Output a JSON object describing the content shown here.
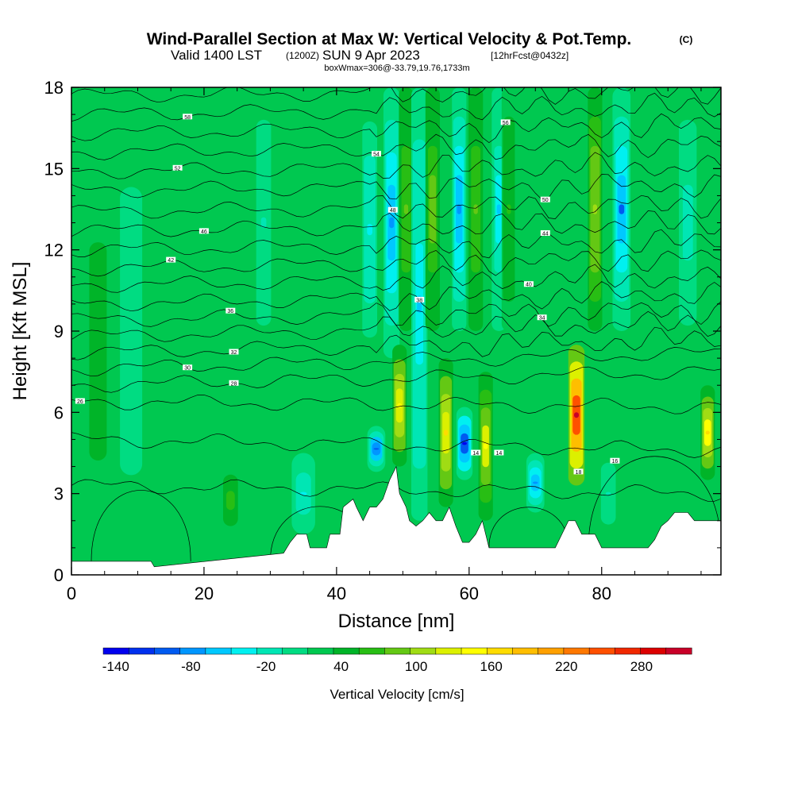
{
  "chart_data": {
    "type": "heatmap",
    "title": "Wind-Parallel Section at Max W: Vertical Velocity & Pot.Temp.",
    "copyright": "(C)",
    "subtitle_prefix": "Valid 1400 LST",
    "subtitle_zulu": "(1200Z)",
    "subtitle_date": "SUN 9 Apr 2023",
    "subtitle_fcst": "[12hrFcst@0432z]",
    "info_line": "boxWmax=306@-33.79,19.76,1733m",
    "xlabel": "Distance [nm]",
    "ylabel": "Height [Kft MSL]",
    "xlim": [
      0,
      98
    ],
    "ylim": [
      0,
      18
    ],
    "xticks": [
      0,
      20,
      40,
      60,
      80
    ],
    "yticks": [
      0,
      3,
      6,
      9,
      12,
      15,
      18
    ],
    "colorbar_label": "Vertical Velocity [cm/s]",
    "colorbar_range": [
      -150,
      320
    ],
    "colorbar_ticks": [
      "-140",
      "-80",
      "-20",
      "40",
      "100",
      "160",
      "220",
      "280"
    ],
    "colorbar_tick_values": [
      -140,
      -80,
      -20,
      40,
      100,
      160,
      220,
      280
    ],
    "colors": [
      "#0000ee",
      "#0030ee",
      "#005af0",
      "#0096ff",
      "#00c8ff",
      "#00f0f0",
      "#00e6b4",
      "#00dc82",
      "#00c850",
      "#00b428",
      "#28be14",
      "#64c814",
      "#a0dc14",
      "#dcf000",
      "#ffff00",
      "#ffdc00",
      "#ffbe00",
      "#ffa000",
      "#ff7800",
      "#ff5000",
      "#f02800",
      "#dc0000",
      "#c80028"
    ],
    "background_w": 25,
    "columns": [
      {
        "x": 4,
        "halfwidth": 1.5,
        "w": 40,
        "ybot": 0.5,
        "ytop": 16
      },
      {
        "x": 9,
        "halfwidth": 1.5,
        "w": -5,
        "ybot": 2,
        "ytop": 16
      },
      {
        "x": 24,
        "halfwidth": 1.0,
        "w": 65,
        "ybot": 1.5,
        "ytop": 4
      },
      {
        "x": 35,
        "halfwidth": 1.3,
        "w": -35,
        "ybot": 1.5,
        "ytop": 4.5
      },
      {
        "x": 29,
        "halfwidth": 1.0,
        "w": -10,
        "ybot": 8,
        "ytop": 18
      },
      {
        "x": 45,
        "halfwidth": 1.0,
        "w": -30,
        "ybot": 7.5,
        "ytop": 18
      },
      {
        "x": 46,
        "halfwidth": 1.0,
        "w": -100,
        "ybot": 3.8,
        "ytop": 5.5
      },
      {
        "x": 48.3,
        "halfwidth": 0.9,
        "w": -70,
        "ybot": 8,
        "ytop": 18
      },
      {
        "x": 49.5,
        "halfwidth": 0.8,
        "w": 150,
        "ybot": 4,
        "ytop": 8.5
      },
      {
        "x": 50.5,
        "halfwidth": 0.8,
        "w": 80,
        "ybot": 9,
        "ytop": 18
      },
      {
        "x": 52.5,
        "halfwidth": 0.9,
        "w": -60,
        "ybot": 2,
        "ytop": 18
      },
      {
        "x": 54.5,
        "halfwidth": 0.8,
        "w": 90,
        "ybot": 9,
        "ytop": 18
      },
      {
        "x": 56.5,
        "halfwidth": 0.8,
        "w": 160,
        "ybot": 2.5,
        "ytop": 8
      },
      {
        "x": 58.5,
        "halfwidth": 0.8,
        "w": -70,
        "ybot": 9,
        "ytop": 18
      },
      {
        "x": 59.3,
        "halfwidth": 0.9,
        "w": -130,
        "ybot": 3.5,
        "ytop": 6.2
      },
      {
        "x": 61,
        "halfwidth": 0.8,
        "w": 80,
        "ybot": 9,
        "ytop": 18
      },
      {
        "x": 62.5,
        "halfwidth": 0.8,
        "w": 140,
        "ybot": 2,
        "ytop": 7.5
      },
      {
        "x": 64.5,
        "halfwidth": 0.8,
        "w": -50,
        "ybot": 9,
        "ytop": 18
      },
      {
        "x": 66,
        "halfwidth": 0.8,
        "w": 60,
        "ybot": 9,
        "ytop": 18
      },
      {
        "x": 70,
        "halfwidth": 1.0,
        "w": -80,
        "ybot": 2.3,
        "ytop": 4.5
      },
      {
        "x": 76.2,
        "halfwidth": 0.9,
        "w": 300,
        "ybot": 3.3,
        "ytop": 8.5
      },
      {
        "x": 79,
        "halfwidth": 0.8,
        "w": 110,
        "ybot": 9,
        "ytop": 18
      },
      {
        "x": 83,
        "halfwidth": 1.0,
        "w": -90,
        "ybot": 9,
        "ytop": 18
      },
      {
        "x": 81,
        "halfwidth": 1.0,
        "w": -10,
        "ybot": 1.5,
        "ytop": 4.5
      },
      {
        "x": 96,
        "halfwidth": 0.8,
        "w": 170,
        "ybot": 3.5,
        "ytop": 7
      },
      {
        "x": 93,
        "halfwidth": 1.2,
        "w": -20,
        "ybot": 8,
        "ytop": 18
      }
    ],
    "terrain": [
      [
        0,
        0.5
      ],
      [
        12,
        0.5
      ],
      [
        12.5,
        0.3
      ],
      [
        32,
        0.8
      ],
      [
        33,
        1.2
      ],
      [
        34,
        1.5
      ],
      [
        35.5,
        1.5
      ],
      [
        36,
        1.0
      ],
      [
        38.5,
        1.0
      ],
      [
        39,
        1.5
      ],
      [
        40.5,
        1.5
      ],
      [
        41,
        2.5
      ],
      [
        42.5,
        2.8
      ],
      [
        43,
        2.5
      ],
      [
        44,
        2.0
      ],
      [
        45,
        2.5
      ],
      [
        46,
        2.5
      ],
      [
        47,
        2.8
      ],
      [
        48,
        3.5
      ],
      [
        49,
        4.0
      ],
      [
        49.5,
        3.0
      ],
      [
        50.5,
        2.5
      ],
      [
        51,
        2.0
      ],
      [
        52,
        1.8
      ],
      [
        53,
        2.0
      ],
      [
        54,
        2.3
      ],
      [
        55,
        2.0
      ],
      [
        56,
        2.0
      ],
      [
        57,
        2.5
      ],
      [
        58,
        1.8
      ],
      [
        59,
        1.2
      ],
      [
        60,
        1.2
      ],
      [
        61,
        1.5
      ],
      [
        62,
        2.0
      ],
      [
        63,
        1.0
      ],
      [
        73,
        1.0
      ],
      [
        74,
        1.5
      ],
      [
        75,
        2.0
      ],
      [
        76,
        2.0
      ],
      [
        77,
        1.5
      ],
      [
        79,
        1.5
      ],
      [
        80,
        1.0
      ],
      [
        87,
        1.0
      ],
      [
        88,
        1.3
      ],
      [
        89,
        1.8
      ],
      [
        90,
        2.0
      ],
      [
        91,
        2.3
      ],
      [
        93,
        2.3
      ],
      [
        94,
        2.0
      ],
      [
        98,
        2.0
      ]
    ],
    "theta_lines": [
      {
        "h0": 3.3,
        "h1": 3.0,
        "label": "",
        "lx": 0
      },
      {
        "h0": 5.0,
        "h1": 4.6,
        "label": "",
        "lx": 0
      },
      {
        "h0": 6.4,
        "h1": 6.2,
        "label": "26",
        "lx": 1.3
      },
      {
        "h0": 7.0,
        "h1": 7.5,
        "label": "28",
        "lx": 24.5
      },
      {
        "h0": 7.6,
        "h1": 8.2,
        "label": "30",
        "lx": 17.5
      },
      {
        "h0": 8.2,
        "h1": 8.7,
        "label": "32",
        "lx": 24.5
      },
      {
        "h0": 8.8,
        "h1": 9.3,
        "label": "34",
        "lx": 71
      },
      {
        "h0": 9.4,
        "h1": 9.8,
        "label": "36",
        "lx": 24
      },
      {
        "h0": 10.0,
        "h1": 10.4,
        "label": "38",
        "lx": 52.5
      },
      {
        "h0": 10.7,
        "h1": 11.0,
        "label": "40",
        "lx": 69
      },
      {
        "h0": 11.3,
        "h1": 11.7,
        "label": "42",
        "lx": 15
      },
      {
        "h0": 12.0,
        "h1": 12.3,
        "label": "44",
        "lx": 71.5
      },
      {
        "h0": 12.7,
        "h1": 13.0,
        "label": "46",
        "lx": 20
      },
      {
        "h0": 13.4,
        "h1": 13.7,
        "label": "48",
        "lx": 48.5
      },
      {
        "h0": 14.2,
        "h1": 14.4,
        "label": "50",
        "lx": 71.5
      },
      {
        "h0": 14.9,
        "h1": 15.1,
        "label": "52",
        "lx": 16
      },
      {
        "h0": 15.6,
        "h1": 15.9,
        "label": "54",
        "lx": 46
      },
      {
        "h0": 16.3,
        "h1": 16.6,
        "label": "56",
        "lx": 65.5
      },
      {
        "h0": 17.0,
        "h1": 17.3,
        "label": "58",
        "lx": 17.5
      },
      {
        "h0": 17.7,
        "h1": 17.9,
        "label": "",
        "lx": 0
      }
    ],
    "lower_contour_labels": [
      {
        "text": "14",
        "x": 61,
        "y": 4.5
      },
      {
        "text": "14",
        "x": 64.5,
        "y": 4.5
      },
      {
        "text": "18",
        "x": 76.5,
        "y": 3.8
      },
      {
        "text": "16",
        "x": 82,
        "y": 4.2
      }
    ]
  }
}
